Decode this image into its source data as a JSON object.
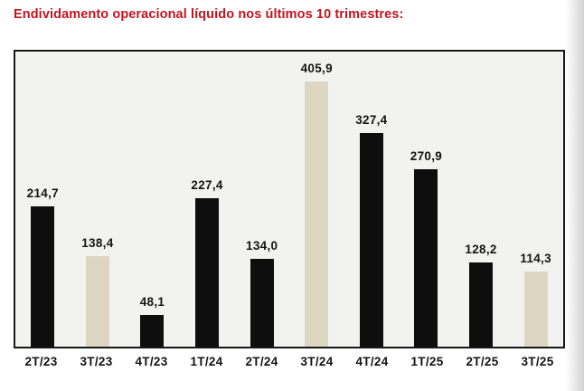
{
  "page": {
    "title": "Endividamento operacional líquido nos últimos 10 trimestres:"
  },
  "colors": {
    "title_red": "#c3141f",
    "bar_black": "#0e0e0e",
    "bar_accent_beige": "#ddd7c2",
    "plot_background": "#f2f2f0",
    "frame_border": "#181818",
    "label_text": "#141414"
  },
  "chart_data": {
    "type": "bar",
    "title": "Endividamento operacional líquido nos últimos 10 trimestres:",
    "xlabel": "",
    "ylabel": "",
    "categories": [
      "2T/23",
      "3T/23",
      "4T/23",
      "1T/24",
      "2T/24",
      "3T/24",
      "4T/24",
      "1T/25",
      "2T/25",
      "3T/25"
    ],
    "values": [
      214.7,
      138.4,
      48.1,
      227.4,
      134.0,
      405.9,
      327.4,
      270.9,
      128.2,
      114.3
    ],
    "value_labels": [
      "214,7",
      "138,4",
      "48,1",
      "227,4",
      "134,0",
      "405,9",
      "327,4",
      "270,9",
      "128,2",
      "114,3"
    ],
    "bar_color_roles": [
      "black",
      "accent",
      "black",
      "black",
      "black",
      "accent",
      "black",
      "black",
      "black",
      "accent"
    ],
    "decimal_separator": ",",
    "ylim": [
      0,
      420
    ],
    "grid": false,
    "legend": false,
    "value_labels_position": "above-bars",
    "plot_background": "#f2f2f0"
  }
}
